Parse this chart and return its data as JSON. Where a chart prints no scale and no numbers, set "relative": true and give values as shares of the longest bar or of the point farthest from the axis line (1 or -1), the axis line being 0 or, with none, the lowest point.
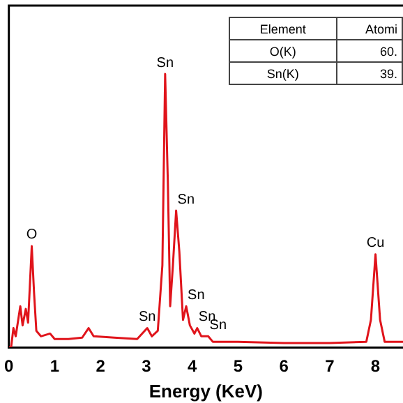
{
  "chart_data": {
    "type": "line",
    "relative": true,
    "xlabel": "Energy (KeV)",
    "x": [
      0,
      0.05,
      0.1,
      0.15,
      0.25,
      0.3,
      0.37,
      0.42,
      0.5,
      0.55,
      0.6,
      0.7,
      0.9,
      1.0,
      1.3,
      1.6,
      1.74,
      1.85,
      2.3,
      2.8,
      3.02,
      3.12,
      3.25,
      3.35,
      3.41,
      3.47,
      3.52,
      3.58,
      3.65,
      3.72,
      3.8,
      3.87,
      3.95,
      4.05,
      4.11,
      4.2,
      4.35,
      4.45,
      5.0,
      6.0,
      7.0,
      7.8,
      7.9,
      8.0,
      8.1,
      8.2,
      8.6
    ],
    "series": [
      {
        "color": "#e0141b",
        "values": [
          0,
          0,
          0.07,
          0.04,
          0.15,
          0.08,
          0.14,
          0.09,
          0.37,
          0.2,
          0.06,
          0.04,
          0.05,
          0.03,
          0.03,
          0.035,
          0.07,
          0.04,
          0.035,
          0.03,
          0.07,
          0.04,
          0.06,
          0.3,
          1.0,
          0.6,
          0.15,
          0.3,
          0.5,
          0.35,
          0.1,
          0.15,
          0.08,
          0.05,
          0.07,
          0.04,
          0.04,
          0.02,
          0.02,
          0.015,
          0.015,
          0.02,
          0.1,
          0.34,
          0.1,
          0.02,
          0.02
        ]
      }
    ],
    "xlim": [
      0,
      8.6
    ],
    "xticks": [
      0,
      1,
      2,
      3,
      4,
      5,
      6,
      7,
      8
    ],
    "grid": false,
    "legend": false,
    "marker": "none",
    "line_style": "solid",
    "annotations": [
      {
        "text": "O",
        "x": 0.5,
        "y": 0.37
      },
      {
        "text": "Sn",
        "x": 3.41,
        "y": 1.0
      },
      {
        "text": "Sn",
        "x": 3.65,
        "y": 0.5
      },
      {
        "text": "Sn",
        "x": 3.02,
        "y": 0.07
      },
      {
        "text": "Sn",
        "x": 3.87,
        "y": 0.15
      },
      {
        "text": "Sn",
        "x": 4.11,
        "y": 0.07
      },
      {
        "text": "Sn",
        "x": 4.35,
        "y": 0.04
      },
      {
        "text": "Cu",
        "x": 8.0,
        "y": 0.34
      },
      "Element",
      "Atomi",
      "O(K)",
      "60.",
      "Sn(K)",
      "39."
    ]
  }
}
